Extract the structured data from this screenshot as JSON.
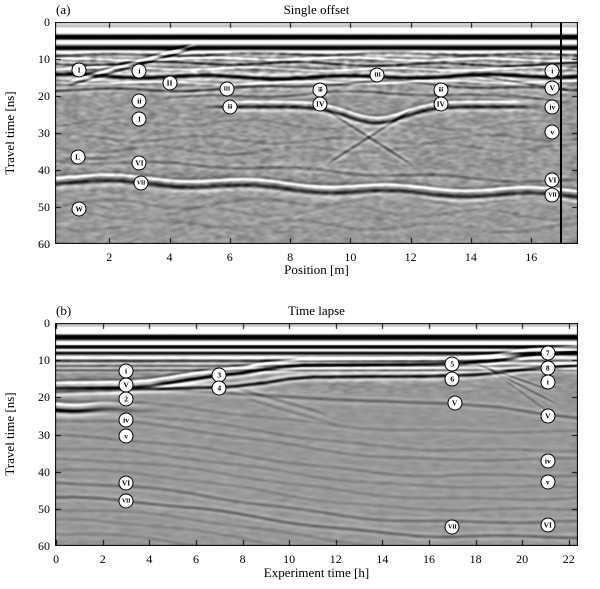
{
  "colors": {
    "background": "#ffffff",
    "axis_ink": "#000000",
    "marker_fill": "#ffffff",
    "radargram_mid_gray": "#989898"
  },
  "chart_data": [
    {
      "type": "heatmap",
      "panel": "a",
      "corner_label": "(a)",
      "title": "Single offset",
      "xlabel": "Position [m]",
      "ylabel": "Travel time [ns]",
      "xlim": [
        0.2,
        17.55
      ],
      "ylim": [
        60,
        0
      ],
      "xticks": [
        2,
        4,
        6,
        8,
        10,
        12,
        14,
        16
      ],
      "yticks": [
        0,
        10,
        20,
        30,
        40,
        50,
        60
      ],
      "grid": false,
      "colormap": "grayscale radar amplitude",
      "vertical_line_x": 17.0,
      "annotations": [
        {
          "label": "I",
          "x": 1.0,
          "y": 13.0
        },
        {
          "label": "i",
          "x": 3.0,
          "y": 13.2
        },
        {
          "label": "II",
          "x": 4.0,
          "y": 16.5
        },
        {
          "label": "ii",
          "x": 3.0,
          "y": 21.4
        },
        {
          "label": "1",
          "x": 3.0,
          "y": 26.2
        },
        {
          "label": "III",
          "x": 5.9,
          "y": 18.1
        },
        {
          "label": "iii",
          "x": 6.0,
          "y": 23.0
        },
        {
          "label": "iii",
          "x": 9.0,
          "y": 18.4
        },
        {
          "label": "IV",
          "x": 9.0,
          "y": 22.2
        },
        {
          "label": "III",
          "x": 10.9,
          "y": 14.3
        },
        {
          "label": "iii",
          "x": 13.0,
          "y": 18.4
        },
        {
          "label": "IV",
          "x": 13.0,
          "y": 22.2
        },
        {
          "label": "i",
          "x": 16.7,
          "y": 13.2
        },
        {
          "label": "V",
          "x": 16.7,
          "y": 17.8
        },
        {
          "label": "iv",
          "x": 16.7,
          "y": 23.0
        },
        {
          "label": "v",
          "x": 16.7,
          "y": 29.7
        },
        {
          "label": "L",
          "x": 0.95,
          "y": 36.5
        },
        {
          "label": "VI",
          "x": 3.0,
          "y": 38.1
        },
        {
          "label": "VII",
          "x": 3.05,
          "y": 43.5
        },
        {
          "label": "W",
          "x": 1.0,
          "y": 50.5
        },
        {
          "label": "VI",
          "x": 16.7,
          "y": 42.7
        },
        {
          "label": "VII",
          "x": 16.7,
          "y": 46.8
        }
      ]
    },
    {
      "type": "heatmap",
      "panel": "b",
      "corner_label": "(b)",
      "title": "Time lapse",
      "xlabel": "Experiment time [h]",
      "ylabel": "Travel time [ns]",
      "xlim": [
        -0.05,
        22.4
      ],
      "ylim": [
        60,
        0
      ],
      "xticks": [
        0,
        2,
        4,
        6,
        8,
        10,
        12,
        14,
        16,
        18,
        20,
        22
      ],
      "yticks": [
        0,
        10,
        20,
        30,
        40,
        50,
        60
      ],
      "grid": false,
      "colormap": "grayscale radar amplitude",
      "annotations": [
        {
          "label": "i",
          "x": 3.0,
          "y": 13.0
        },
        {
          "label": "V",
          "x": 3.0,
          "y": 16.8
        },
        {
          "label": "2",
          "x": 3.0,
          "y": 20.5
        },
        {
          "label": "iv",
          "x": 3.0,
          "y": 26.0
        },
        {
          "label": "v",
          "x": 3.0,
          "y": 30.5
        },
        {
          "label": "3",
          "x": 7.0,
          "y": 14.0
        },
        {
          "label": "4",
          "x": 7.0,
          "y": 17.5
        },
        {
          "label": "5",
          "x": 17.0,
          "y": 11.0
        },
        {
          "label": "6",
          "x": 17.0,
          "y": 15.0
        },
        {
          "label": "V",
          "x": 17.1,
          "y": 21.5
        },
        {
          "label": "VII",
          "x": 17.0,
          "y": 55.0
        },
        {
          "label": "7",
          "x": 21.1,
          "y": 8.0
        },
        {
          "label": "8",
          "x": 21.1,
          "y": 12.0
        },
        {
          "label": "i",
          "x": 21.1,
          "y": 15.9
        },
        {
          "label": "V",
          "x": 21.1,
          "y": 25.0
        },
        {
          "label": "iv",
          "x": 21.1,
          "y": 37.0
        },
        {
          "label": "v",
          "x": 21.1,
          "y": 42.8
        },
        {
          "label": "VI",
          "x": 21.1,
          "y": 54.3
        },
        {
          "label": "VI",
          "x": 3.0,
          "y": 43.0
        },
        {
          "label": "VII",
          "x": 3.0,
          "y": 47.9
        }
      ]
    }
  ]
}
